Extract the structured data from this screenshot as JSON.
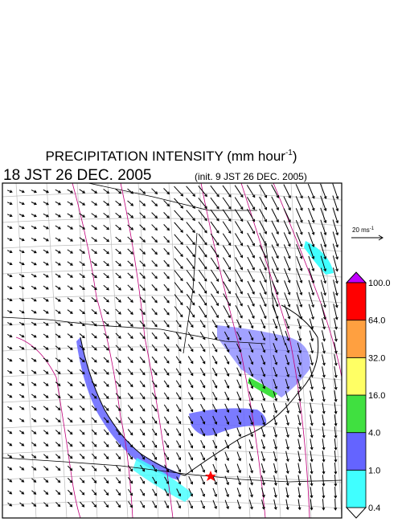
{
  "header": {
    "title": "PRECIPITATION INTENSITY (mm hour",
    "title_sup": "-1",
    "title_end": ")",
    "valid_time": "18 JST 26 DEC. 2005",
    "init_time": "(init. 9 JST 26 DEC. 2005)"
  },
  "legend": {
    "scale_label": "20 ms",
    "scale_sup": "-1"
  },
  "colorbar": {
    "levels": [
      0.4,
      {
        "value": 1,
        "label": "1.0"
      },
      {
        "value": 4,
        "label": "4.0"
      },
      {
        "value": 16,
        "label": "16.0"
      },
      {
        "value": 32,
        "label": "32.0"
      },
      {
        "value": 64,
        "label": "64.0"
      },
      {
        "value": 100,
        "label": "100.0"
      }
    ],
    "colors": [
      "#40ffff",
      "#6464ff",
      "#40e040",
      "#ffff64",
      "#ffa040",
      "#ff0000"
    ],
    "under_color": "#ffffff",
    "over_color": "#c000ff"
  }
}
